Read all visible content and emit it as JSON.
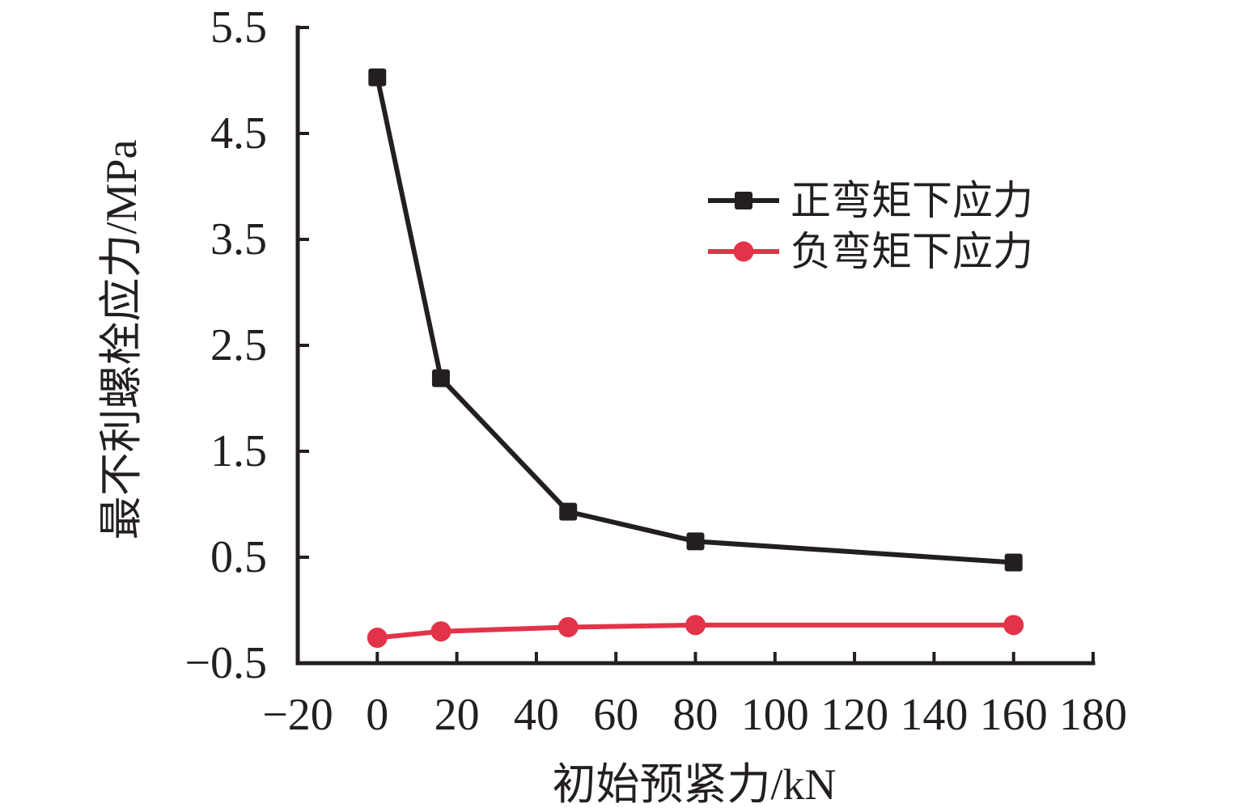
{
  "figure": {
    "background": "#ffffff",
    "axis_color": "#231f20"
  },
  "chart_data": {
    "type": "line",
    "title": "",
    "xlabel": "初始预紧力/kN",
    "ylabel": "最不利螺栓应力/MPa",
    "xlim": [
      -20,
      180
    ],
    "ylim": [
      -0.5,
      5.5
    ],
    "x_ticks": [
      -20,
      0,
      20,
      40,
      60,
      80,
      100,
      120,
      140,
      160,
      180
    ],
    "y_ticks": [
      -0.5,
      0.5,
      1.5,
      2.5,
      3.5,
      4.5,
      5.5
    ],
    "grid": false,
    "legend_position": "upper-right-inside",
    "series": [
      {
        "name": "正弯矩下应力",
        "color": "#231f20",
        "marker": "square",
        "x": [
          0,
          16,
          48,
          80,
          160
        ],
        "y": [
          5.03,
          2.19,
          0.93,
          0.65,
          0.45
        ]
      },
      {
        "name": "负弯矩下应力",
        "color": "#e23349",
        "marker": "circle",
        "x": [
          0,
          16,
          48,
          80,
          160
        ],
        "y": [
          -0.26,
          -0.2,
          -0.16,
          -0.14,
          -0.14
        ]
      }
    ]
  }
}
